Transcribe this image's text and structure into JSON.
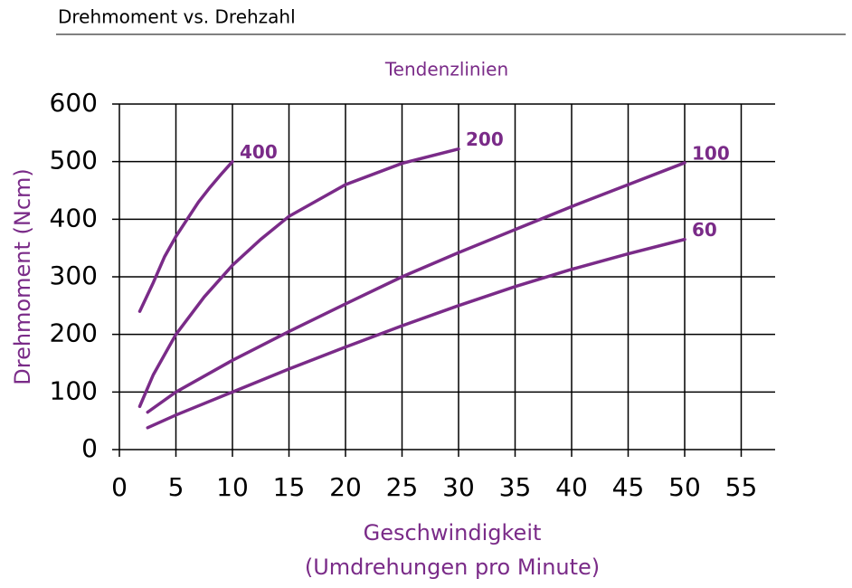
{
  "chart_data": {
    "type": "line",
    "title": "Drehmoment vs. Drehzahl",
    "subtitle": "Tendenzlinien",
    "ylabel": "Drehmoment (Ncm)",
    "xlabel": [
      "Geschwindigkeit",
      "(Umdrehungen pro Minute)"
    ],
    "xlim": [
      0,
      58
    ],
    "ylim": [
      0,
      600
    ],
    "xticks": [
      0,
      5,
      10,
      15,
      20,
      25,
      30,
      35,
      40,
      45,
      50,
      55
    ],
    "yticks": [
      0,
      100,
      200,
      300,
      400,
      500,
      600
    ],
    "grid": true,
    "series": [
      {
        "name": "400",
        "color": "#7a2b88",
        "x": [
          1.8,
          3,
          4,
          5,
          6,
          7,
          8,
          9,
          10
        ],
        "values": [
          240,
          290,
          335,
          370,
          400,
          430,
          455,
          478,
          500
        ]
      },
      {
        "name": "200",
        "color": "#7a2b88",
        "x": [
          1.8,
          3,
          5,
          7.5,
          10,
          12.5,
          15,
          20,
          25,
          30
        ],
        "values": [
          75,
          130,
          200,
          265,
          320,
          365,
          405,
          460,
          497,
          522
        ]
      },
      {
        "name": "100",
        "color": "#7a2b88",
        "x": [
          2.5,
          5,
          10,
          15,
          20,
          25,
          30,
          35,
          40,
          45,
          50
        ],
        "values": [
          65,
          100,
          155,
          205,
          253,
          300,
          342,
          382,
          422,
          460,
          498
        ]
      },
      {
        "name": "60",
        "color": "#7a2b88",
        "x": [
          2.5,
          5,
          10,
          15,
          20,
          25,
          30,
          35,
          40,
          45,
          50
        ],
        "values": [
          38,
          60,
          100,
          140,
          178,
          215,
          250,
          283,
          313,
          340,
          365
        ]
      }
    ]
  }
}
